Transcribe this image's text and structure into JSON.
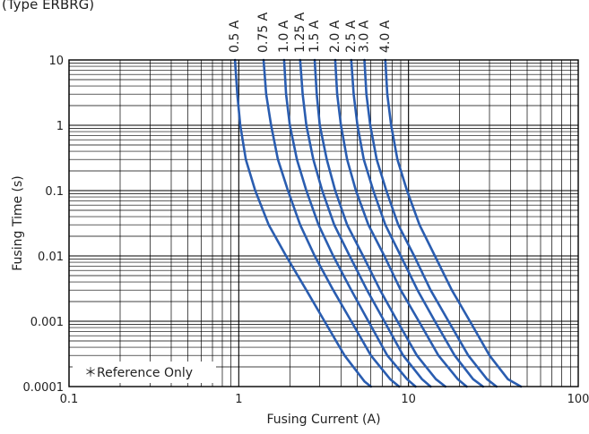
{
  "chart_data": {
    "type": "line",
    "title": "(Type ERBRG)",
    "xlabel": "Fusing Current (A)",
    "ylabel": "Fusing Time  (s)",
    "x_scale": "log",
    "y_scale": "log",
    "xlim": [
      0.1,
      100
    ],
    "ylim": [
      0.0001,
      10
    ],
    "x_ticks": [
      "0.1",
      "1",
      "10",
      "100"
    ],
    "y_ticks": [
      "0.0001",
      "0.001",
      "0.01",
      "0.1",
      "1",
      "10"
    ],
    "grid": true,
    "legend": "inline labels along top of plot",
    "annotation": "＊Reference Only",
    "line_color": "#2a5db0",
    "series": [
      {
        "name": "0.5 A",
        "x": [
          0.95,
          0.98,
          1.02,
          1.1,
          1.25,
          1.5,
          1.9,
          2.5,
          3.2,
          4.2,
          5.5,
          6.0
        ],
        "y": [
          10,
          3,
          1,
          0.3,
          0.1,
          0.03,
          0.01,
          0.003,
          0.001,
          0.0003,
          0.00012,
          0.0001
        ]
      },
      {
        "name": "0.75 A",
        "x": [
          1.4,
          1.45,
          1.55,
          1.7,
          1.95,
          2.3,
          2.8,
          3.6,
          4.6,
          6.0,
          7.8,
          8.8
        ],
        "y": [
          10,
          3,
          1,
          0.3,
          0.1,
          0.03,
          0.01,
          0.003,
          0.001,
          0.0003,
          0.00013,
          0.0001
        ]
      },
      {
        "name": "1.0 A",
        "x": [
          1.85,
          1.9,
          2.0,
          2.2,
          2.5,
          2.95,
          3.6,
          4.6,
          5.8,
          7.5,
          9.8,
          11.0
        ],
        "y": [
          10,
          3,
          1,
          0.3,
          0.1,
          0.03,
          0.01,
          0.003,
          0.001,
          0.0003,
          0.00013,
          0.0001
        ]
      },
      {
        "name": "1.25 A",
        "x": [
          2.3,
          2.38,
          2.5,
          2.75,
          3.1,
          3.65,
          4.5,
          5.7,
          7.2,
          9.3,
          12.0,
          13.5
        ],
        "y": [
          10,
          3,
          1,
          0.3,
          0.1,
          0.03,
          0.01,
          0.003,
          0.001,
          0.0003,
          0.00013,
          0.0001
        ]
      },
      {
        "name": "1.5 A",
        "x": [
          2.8,
          2.88,
          3.0,
          3.3,
          3.7,
          4.35,
          5.4,
          6.8,
          8.6,
          11.2,
          14.5,
          16.5
        ],
        "y": [
          10,
          3,
          1,
          0.3,
          0.1,
          0.03,
          0.01,
          0.003,
          0.001,
          0.0003,
          0.00013,
          0.0001
        ]
      },
      {
        "name": "2.0 A",
        "x": [
          3.7,
          3.8,
          4.0,
          4.35,
          4.9,
          5.8,
          7.2,
          9.0,
          11.5,
          15.0,
          19.5,
          22.0
        ],
        "y": [
          10,
          3,
          1,
          0.3,
          0.1,
          0.03,
          0.01,
          0.003,
          0.001,
          0.0003,
          0.00013,
          0.0001
        ]
      },
      {
        "name": "2.5 A",
        "x": [
          4.6,
          4.75,
          5.0,
          5.45,
          6.2,
          7.3,
          9.0,
          11.3,
          14.3,
          18.7,
          24.0,
          27.5
        ],
        "y": [
          10,
          3,
          1,
          0.3,
          0.1,
          0.03,
          0.01,
          0.003,
          0.001,
          0.0003,
          0.00013,
          0.0001
        ]
      },
      {
        "name": "3.0 A",
        "x": [
          5.5,
          5.65,
          5.95,
          6.5,
          7.4,
          8.7,
          10.8,
          13.5,
          17.2,
          22.5,
          29.0,
          33.0
        ],
        "y": [
          10,
          3,
          1,
          0.3,
          0.1,
          0.03,
          0.01,
          0.003,
          0.001,
          0.0003,
          0.00013,
          0.0001
        ]
      },
      {
        "name": "4.0 A",
        "x": [
          7.3,
          7.5,
          7.9,
          8.6,
          9.8,
          11.6,
          14.3,
          18.0,
          23.0,
          30.0,
          38.5,
          46.0
        ],
        "y": [
          10,
          3,
          1,
          0.3,
          0.1,
          0.03,
          0.01,
          0.003,
          0.001,
          0.0003,
          0.00013,
          0.0001
        ]
      }
    ]
  }
}
